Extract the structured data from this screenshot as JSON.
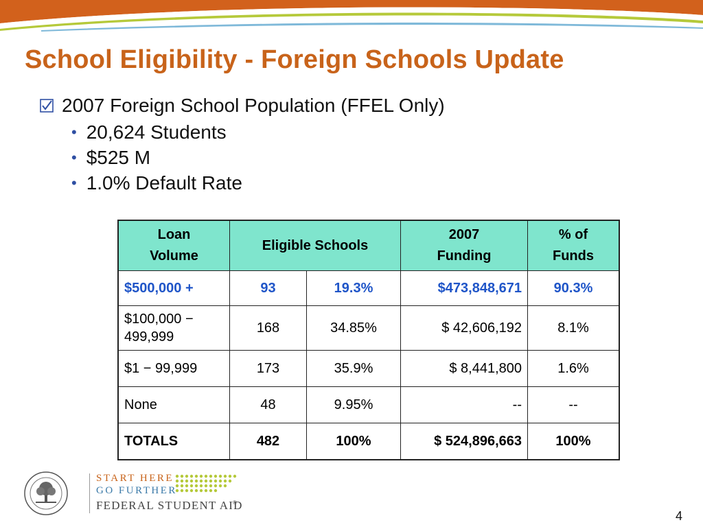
{
  "slide": {
    "title": "School Eligibility - Foreign Schools Update",
    "checked_item": "2007 Foreign School Population (FFEL Only)",
    "bullets": [
      "20,624 Students",
      "$525 M",
      "1.0% Default Rate"
    ],
    "page_number": "4"
  },
  "table": {
    "headers": {
      "loan_volume": [
        "Loan",
        "Volume"
      ],
      "eligible_schools": "Eligible Schools",
      "funding": [
        "2007",
        "Funding"
      ],
      "share": [
        "% of",
        "Funds"
      ]
    },
    "rows": [
      {
        "volume": "$500,000 +",
        "count": "93",
        "percent": "19.3%",
        "funding": "$473,848,671",
        "share": "90.3%"
      },
      {
        "volume": [
          "$100,000 −",
          "499,999"
        ],
        "count": "168",
        "percent": "34.85%",
        "funding": "$ 42,606,192",
        "share": "8.1%"
      },
      {
        "volume": "$1 − 99,999",
        "count": "173",
        "percent": "35.9%",
        "funding": "$ 8,441,800",
        "share": "1.6%"
      },
      {
        "volume": "None",
        "count": "48",
        "percent": "9.95%",
        "funding": "--",
        "share": "--"
      },
      {
        "volume": "TOTALS",
        "count": "482",
        "percent": "100%",
        "funding": "$ 524,896,663",
        "share": "100%"
      }
    ]
  },
  "logo": {
    "line1": "START HERE",
    "line2": "GO FURTHER",
    "line3": "FEDERAL STUDENT AID",
    "registered": "®",
    "seal_icon": "department-of-education-seal-icon"
  },
  "colors": {
    "title": "#c8631a",
    "banner_orange": "#d2611c",
    "banner_green": "#b5c93a",
    "header_fill": "#7fe5cd",
    "highlight_row": "#1f55c8",
    "bullet": "#2f4fa3"
  }
}
